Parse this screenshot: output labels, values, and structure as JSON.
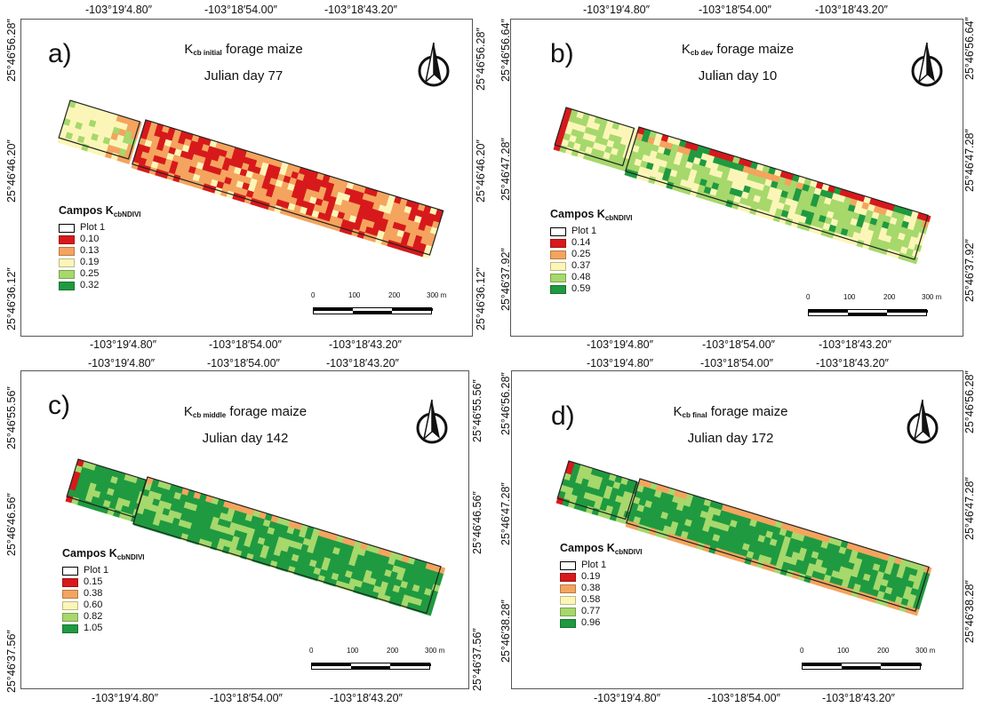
{
  "coordinates": {
    "lon_ticks": [
      "-103°19′4.80″",
      "-103°18′54.00″",
      "-103°18′43.20″"
    ]
  },
  "panels": [
    {
      "label": "a)",
      "title_prefix": "K",
      "title_sub": "cb initial",
      "title_suffix": " forage maize",
      "julian_day": "Julian day 77",
      "lat_left": [
        "25°46′36.12″",
        "25°46′46.20″",
        "25°46′56.28″"
      ],
      "lat_right": [
        "25°46′36.12″",
        "25°46′46.20″",
        "25°46′56.28″"
      ],
      "legend": {
        "title_main": "Campos K",
        "title_sub": "cbNDIVI",
        "plot": "Plot 1",
        "values": [
          "0.10",
          "0.13",
          "0.19",
          "0.25",
          "0.32"
        ]
      },
      "scale": [
        "0",
        "100",
        "200",
        "300 m"
      ]
    },
    {
      "label": "b)",
      "title_prefix": "K",
      "title_sub": "cb dev",
      "title_suffix": " forage maize",
      "julian_day": "Julian day 10",
      "lat_left": [
        "25°46′37.92″",
        "25°46′47.28″",
        "25°46′56.64″"
      ],
      "lat_right": [
        "25°46′37.92″",
        "25°46′47.28″",
        "25°46′56.64″"
      ],
      "legend": {
        "title_main": "Campos K",
        "title_sub": "cbNDIVI",
        "plot": "Plot 1",
        "values": [
          "0.14",
          "0.25",
          "0.37",
          "0.48",
          "0.59"
        ]
      },
      "scale": [
        "0",
        "100",
        "200",
        "300 m"
      ]
    },
    {
      "label": "c)",
      "title_prefix": "K",
      "title_sub": "cb middle",
      "title_suffix": " forage maize",
      "julian_day": "Julian day 142",
      "lat_left": [
        "25°46′37.56″",
        "25°46′46.56″",
        "25°46′55.56″"
      ],
      "lat_right": [
        "25°46′37.56″",
        "25°46′46.56″",
        "25°46′55.56″"
      ],
      "legend": {
        "title_main": "Campos K",
        "title_sub": "cbNDIVI",
        "plot": "Plot 1",
        "values": [
          "0.15",
          "0.38",
          "0.60",
          "0.82",
          "1.05"
        ]
      },
      "scale": [
        "0",
        "100",
        "200",
        "300 m"
      ]
    },
    {
      "label": "d)",
      "title_prefix": "K",
      "title_sub": "cb final",
      "title_suffix": " forage maize",
      "julian_day": "Julian day 172",
      "lat_left": [
        "25°46′38.28″",
        "25°46′47.28″",
        "25°46′56.28″"
      ],
      "lat_right": [
        "25°46′38.28″",
        "25°46′47.28″",
        "25°46′56.28″"
      ],
      "legend": {
        "title_main": "Campos K",
        "title_sub": "cbNDIVI",
        "plot": "Plot 1",
        "values": [
          "0.19",
          "0.38",
          "0.58",
          "0.77",
          "0.96"
        ]
      },
      "scale": [
        "0",
        "100",
        "200",
        "300 m"
      ]
    }
  ],
  "legend_colors": [
    "#d7191c",
    "#f4a45e",
    "#fbf6b8",
    "#a6d86c",
    "#1f9a40"
  ]
}
